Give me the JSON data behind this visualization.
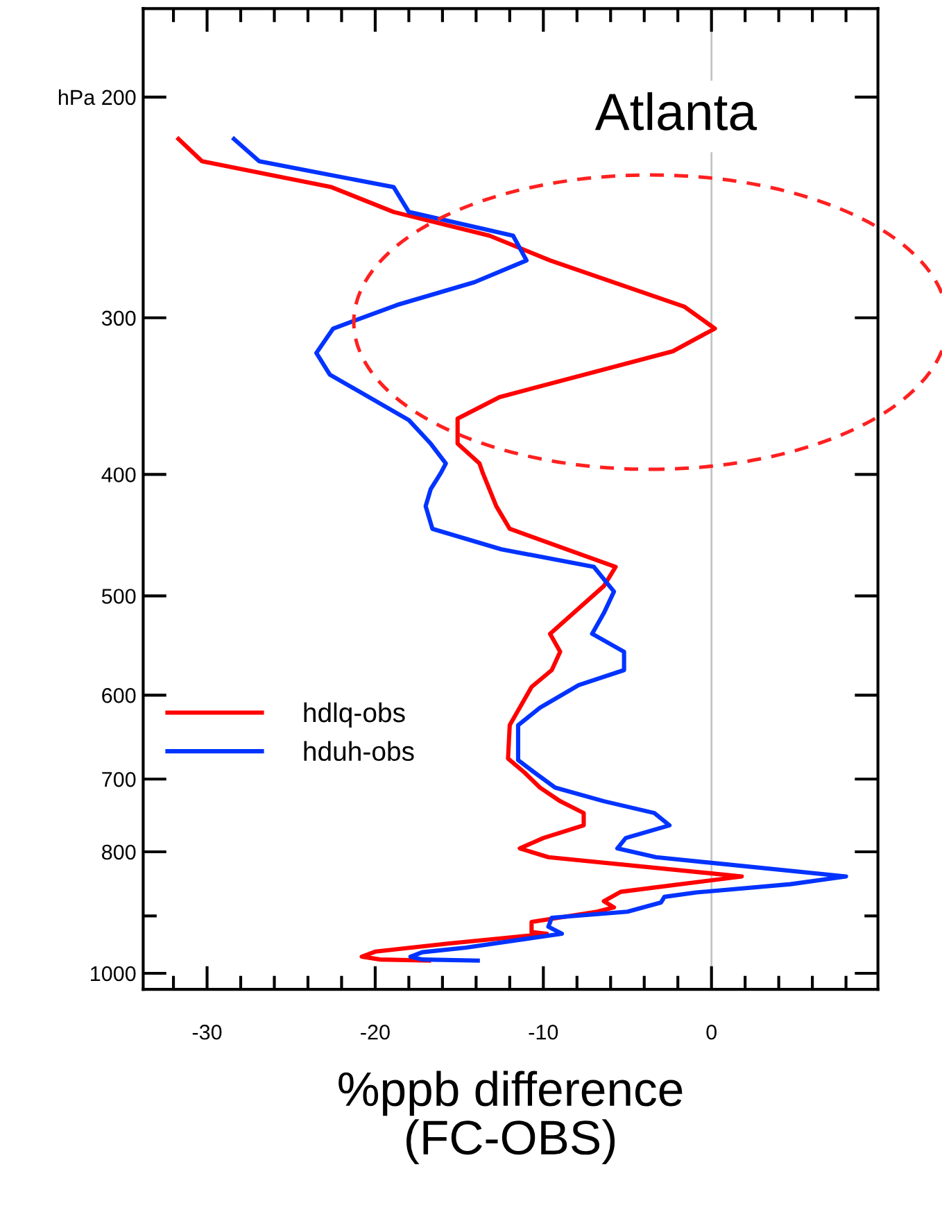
{
  "chart_data": {
    "type": "line",
    "title": "Atlanta",
    "xlabel": "%ppb difference\n(FC-OBS)",
    "log": "y",
    "grid": false,
    "legend": "left",
    "line_style": "solid",
    "marker": "none",
    "xlim": [
      -33.8,
      9.9
    ],
    "ylim": [
      1030,
      170
    ],
    "xticks": [
      {
        "value": -32,
        "label": null
      },
      -30,
      {
        "value": -28,
        "label": null
      },
      {
        "value": -26,
        "label": null
      },
      {
        "value": -24,
        "label": null
      },
      {
        "value": -22,
        "label": null
      },
      -20,
      {
        "value": -18,
        "label": null
      },
      {
        "value": -16,
        "label": null
      },
      {
        "value": -14,
        "label": null
      },
      {
        "value": -12,
        "label": null
      },
      -10,
      {
        "value": -8,
        "label": null
      },
      {
        "value": -6,
        "label": null
      },
      {
        "value": -4,
        "label": null
      },
      {
        "value": -2,
        "label": null
      },
      0,
      {
        "value": 2,
        "label": null
      },
      {
        "value": 4,
        "label": null
      },
      {
        "value": 6,
        "label": null
      },
      {
        "value": 8,
        "label": null
      }
    ],
    "yticks": [
      {
        "value": 200,
        "label": "hPa 200"
      },
      300,
      400,
      500,
      600,
      700,
      800,
      {
        "value": 900,
        "label": null
      },
      1000
    ],
    "ref_lines": [
      {
        "axis": "x",
        "value": 0,
        "color": "#c4c4c4"
      }
    ],
    "series": [
      {
        "name": "hdlq-obs",
        "color": "#ff0000",
        "x": [
          -31.7,
          -30.3,
          -22.6,
          -18.9,
          -13.2,
          -9.6,
          -1.6,
          0.2,
          -2.3,
          -12.6,
          -15.1,
          -15.1,
          -13.8,
          -13.6,
          -12.8,
          -12.0,
          -8.4,
          -5.7,
          -6.4,
          -9.6,
          -9.0,
          -9.5,
          -10.7,
          -12.0,
          -12.1,
          -11.1,
          -10.2,
          -9.0,
          -7.6,
          -7.6,
          -10.0,
          -11.4,
          -9.7,
          1.8,
          -5.4,
          -6.4,
          -5.8,
          -6.8,
          -10.7,
          -10.7,
          -9.8,
          -15.7,
          -20.0,
          -20.8,
          -19.7,
          -16.8
        ],
        "values": [
          216,
          225,
          236,
          247,
          258,
          270,
          294,
          306,
          319,
          347,
          361,
          378,
          392,
          399,
          424,
          442,
          460,
          474,
          491,
          536,
          554,
          573,
          591,
          634,
          674,
          692,
          711,
          729,
          745,
          762,
          780,
          795,
          808,
          837,
          861,
          876,
          886,
          893,
          910,
          927,
          930,
          947,
          961,
          970,
          975,
          977
        ]
      },
      {
        "name": "hduh-obs",
        "color": "#0033ff",
        "x": [
          -28.4,
          -26.9,
          -18.9,
          -18.0,
          -11.8,
          -11.0,
          -14.1,
          -18.7,
          -22.5,
          -23.5,
          -22.7,
          -18.0,
          -16.7,
          -15.8,
          -16.1,
          -16.7,
          -17.0,
          -16.6,
          -12.5,
          -7.0,
          -5.8,
          -6.4,
          -7.1,
          -5.2,
          -5.2,
          -7.9,
          -10.2,
          -11.5,
          -11.5,
          -10.5,
          -9.3,
          -6.4,
          -3.4,
          -2.5,
          -5.1,
          -5.6,
          -3.3,
          8.0,
          4.7,
          -0.9,
          -2.8,
          -3.0,
          -5.0,
          -9.5,
          -9.7,
          -8.9,
          -11.1,
          -14.6,
          -17.2,
          -17.9,
          -17.2,
          -13.9
        ],
        "values": [
          216,
          225,
          236,
          247,
          258,
          270,
          281,
          293,
          306,
          320,
          333,
          362,
          378,
          392,
          399,
          411,
          424,
          442,
          459,
          474,
          496,
          516,
          536,
          554,
          573,
          589,
          614,
          634,
          676,
          692,
          711,
          729,
          745,
          762,
          780,
          795,
          808,
          837,
          849,
          862,
          869,
          878,
          893,
          903,
          918,
          930,
          939,
          954,
          962,
          970,
          975,
          977
        ]
      }
    ]
  }
}
